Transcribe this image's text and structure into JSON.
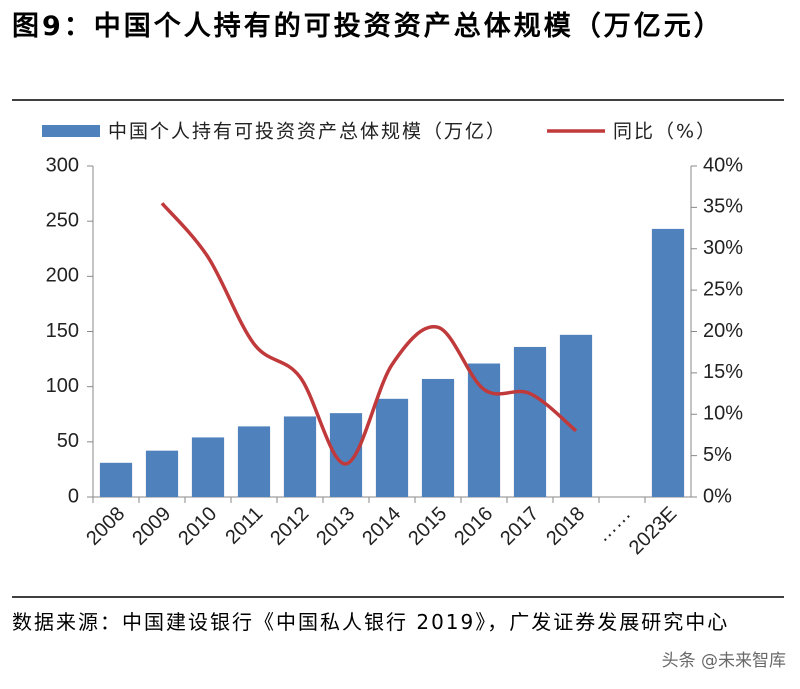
{
  "chart_data": {
    "type": "bar-line",
    "title": "图9：中国个人持有的可投资资产总体规模（万亿元）",
    "categories": [
      "2008",
      "2009",
      "2010",
      "2011",
      "2012",
      "2013",
      "2014",
      "2015",
      "2016",
      "2017",
      "2018",
      "……",
      "2023E"
    ],
    "series": [
      {
        "name": "中国个人持有可投资资产总体规模（万亿）",
        "type": "bar",
        "color": "#4f81bd",
        "values": [
          31,
          42,
          54,
          64,
          73,
          76,
          89,
          107,
          121,
          136,
          147,
          null,
          243
        ]
      },
      {
        "name": "同比（%）",
        "type": "line",
        "axis": "y2",
        "color": "#c0393b",
        "values": [
          null,
          35.5,
          29,
          18.5,
          14.5,
          4,
          16,
          20.5,
          13,
          12.5,
          8,
          null,
          null
        ]
      }
    ],
    "ylim": [
      0,
      300
    ],
    "yticks": [
      0,
      50,
      100,
      150,
      200,
      250,
      300
    ],
    "y2lim": [
      0,
      40
    ],
    "y2ticks": [
      {
        "value": 0,
        "label": "0%"
      },
      {
        "value": 5,
        "label": "5%"
      },
      {
        "value": 10,
        "label": "10%"
      },
      {
        "value": 15,
        "label": "15%"
      },
      {
        "value": 20,
        "label": "20%"
      },
      {
        "value": 25,
        "label": "25%"
      },
      {
        "value": 30,
        "label": "30%"
      },
      {
        "value": 35,
        "label": "35%"
      },
      {
        "value": 40,
        "label": "40%"
      }
    ],
    "legend": "top",
    "source": "数据来源：中国建设银行《中国私人银行 2019》，广发证券发展研究中心",
    "watermark": "头条 @未来智库"
  }
}
